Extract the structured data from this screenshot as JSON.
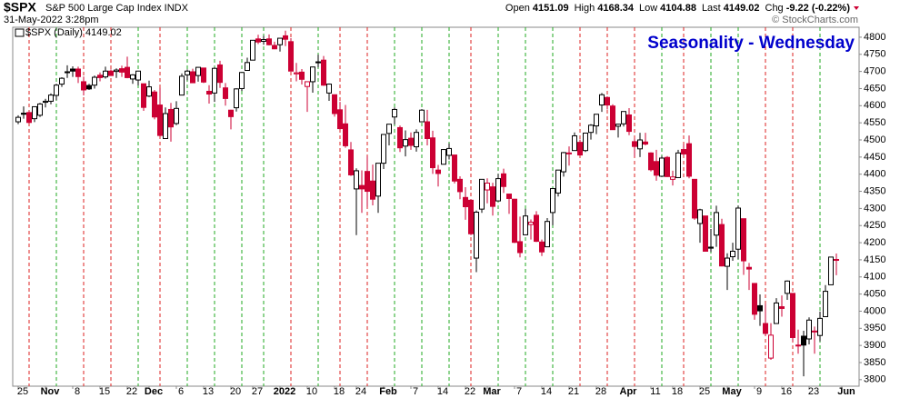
{
  "chart_data": {
    "type": "candlestick",
    "symbol": "$SPX",
    "name": "S&P 500 Large Cap Index INDX",
    "timestamp": "31-May-2022 3:28pm",
    "header": [
      {
        "label": "Open",
        "value": "4151.09"
      },
      {
        "label": "High",
        "value": "4168.34"
      },
      {
        "label": "Low",
        "value": "4104.88"
      },
      {
        "label": "Last",
        "value": "4149.02"
      },
      {
        "label": "Chg",
        "value": "-9.22 (-0.22%)"
      }
    ],
    "copyright": "© StockCharts.com",
    "legend": "$SPX (Daily) 4149.02",
    "title": "Seasonality - Wednesday",
    "categories": [
      "25",
      null,
      null,
      null,
      null,
      "Nov",
      null,
      null,
      null,
      null,
      "8",
      null,
      null,
      null,
      null,
      "15",
      null,
      null,
      null,
      null,
      "22",
      null,
      null,
      null,
      "Dec",
      null,
      null,
      null,
      null,
      "6",
      null,
      null,
      null,
      null,
      "13",
      null,
      null,
      null,
      null,
      "20",
      null,
      null,
      null,
      "27",
      null,
      null,
      null,
      null,
      "2022",
      null,
      null,
      null,
      null,
      "10",
      null,
      null,
      null,
      null,
      "18",
      null,
      null,
      null,
      "24",
      null,
      null,
      null,
      null,
      "Feb",
      null,
      null,
      null,
      null,
      "7",
      null,
      null,
      null,
      null,
      "14",
      null,
      null,
      null,
      null,
      "22",
      null,
      null,
      null,
      "Mar",
      null,
      null,
      null,
      null,
      "7",
      null,
      null,
      null,
      null,
      "14",
      null,
      null,
      null,
      null,
      "21",
      null,
      null,
      null,
      null,
      "28",
      null,
      null,
      null,
      null,
      "Apr",
      null,
      null,
      null,
      null,
      "11",
      null,
      null,
      null,
      "18",
      null,
      null,
      null,
      null,
      "25",
      null,
      null,
      null,
      null,
      "May",
      null,
      null,
      null,
      null,
      "9",
      null,
      null,
      null,
      null,
      "16",
      null,
      null,
      null,
      null,
      "23",
      null,
      null,
      null,
      null,
      null,
      "Jun"
    ],
    "open": [
      4553,
      4578,
      4580,
      4562,
      4572,
      4610,
      4613,
      4630,
      4663,
      4699,
      4707,
      4707,
      4670,
      4659,
      4660,
      4689,
      4684,
      4701,
      4700,
      4708,
      4712,
      4678,
      4675,
      4664,
      4628,
      4640,
      4602,
      4504,
      4589,
      4548,
      4631,
      4690,
      4699,
      4688,
      4710,
      4642,
      4637,
      4719,
      4652,
      4587,
      4594,
      4650,
      4703,
      4733,
      4795,
      4788,
      4795,
      4776,
      4778,
      4804,
      4787,
      4693,
      4698,
      4656,
      4670,
      4728,
      4733,
      4637,
      4632,
      4588,
      4547,
      4471,
      4357,
      4367,
      4408,
      4380,
      4336,
      4432,
      4519,
      4567,
      4536,
      4482,
      4505,
      4480,
      4553,
      4553,
      4506,
      4412,
      4429,
      4455,
      4456,
      4385,
      4332,
      4324,
      4155,
      4298,
      4354,
      4363,
      4322,
      4401,
      4342,
      4327,
      4203,
      4223,
      4253,
      4280,
      4202,
      4188,
      4288,
      4345,
      4407,
      4462,
      4469,
      4493,
      4469,
      4522,
      4541,
      4602,
      4624,
      4599,
      4540,
      4547,
      4573,
      4495,
      4474,
      4494,
      4462,
      4437,
      4394,
      4449,
      4385,
      4390,
      4472,
      4489,
      4385,
      4256,
      4278,
      4187,
      4222,
      4253,
      4131,
      4159,
      4181,
      4270,
      4128,
      4081,
      4016,
      3964,
      3863,
      3964,
      4013,
      4052,
      4052,
      3900,
      3927,
      3919,
      3942,
      3929,
      3984,
      4077,
      4151.09,
      null
    ],
    "high": [
      4572,
      4598,
      4584,
      4598,
      4608,
      4620,
      4636,
      4664,
      4683,
      4718,
      4715,
      4714,
      4685,
      4664,
      4688,
      4697,
      4714,
      4706,
      4709,
      4717,
      4743,
      4692,
      4702,
      4664,
      4673,
      4646,
      4652,
      4595,
      4608,
      4613,
      4694,
      4706,
      4708,
      4713,
      4711,
      4660,
      4712,
      4731,
      4666,
      4588,
      4651,
      4698,
      4740,
      4792,
      4807,
      4804,
      4808,
      4787,
      4797,
      4819,
      4797,
      4725,
      4707,
      4670,
      4714,
      4749,
      4745,
      4665,
      4632,
      4611,
      4602,
      4494,
      4417,
      4411,
      4453,
      4428,
      4432,
      4516,
      4546,
      4595,
      4542,
      4528,
      4522,
      4531,
      4590,
      4588,
      4527,
      4427,
      4473,
      4490,
      4456,
      4394,
      4362,
      4327,
      4294,
      4385,
      4388,
      4375,
      4401,
      4416,
      4342,
      4328,
      4276,
      4299,
      4268,
      4292,
      4209,
      4272,
      4358,
      4412,
      4465,
      4481,
      4522,
      4501,
      4521,
      4546,
      4575,
      4637,
      4627,
      4604,
      4547,
      4583,
      4593,
      4504,
      4521,
      4521,
      4464,
      4471,
      4453,
      4453,
      4410,
      4471,
      4488,
      4513,
      4386,
      4299,
      4278,
      4240,
      4308,
      4270,
      4169,
      4200,
      4308,
      4270,
      4141,
      4081,
      4049,
      4021,
      3965,
      4038,
      4046,
      4090,
      4052,
      3946,
      3943,
      3982,
      3955,
      3999,
      4076,
      4158,
      4168.34,
      null
    ],
    "low": [
      4546,
      4562,
      4549,
      4552,
      4567,
      4595,
      4604,
      4616,
      4655,
      4681,
      4684,
      4666,
      4630,
      4646,
      4650,
      4671,
      4679,
      4688,
      4681,
      4684,
      4680,
      4664,
      4659,
      4585,
      4625,
      4560,
      4510,
      4504,
      4495,
      4543,
      4631,
      4674,
      4666,
      4670,
      4666,
      4606,
      4611,
      4652,
      4600,
      4531,
      4583,
      4643,
      4703,
      4733,
      4780,
      4778,
      4776,
      4765,
      4758,
      4774,
      4700,
      4671,
      4662,
      4582,
      4638,
      4712,
      4658,
      4614,
      4568,
      4531,
      4477,
      4395,
      4222,
      4287,
      4305,
      4309,
      4287,
      4415,
      4484,
      4545,
      4465,
      4452,
      4471,
      4466,
      4553,
      4484,
      4401,
      4364,
      4429,
      4443,
      4373,
      4327,
      4267,
      4222,
      4114,
      4287,
      4315,
      4279,
      4322,
      4345,
      4284,
      4199,
      4157,
      4223,
      4209,
      4202,
      4161,
      4188,
      4251,
      4335,
      4393,
      4425,
      4469,
      4455,
      4465,
      4501,
      4517,
      4582,
      4589,
      4530,
      4507,
      4539,
      4514,
      4450,
      4450,
      4484,
      4408,
      4381,
      4392,
      4392,
      4367,
      4390,
      4453,
      4388,
      4267,
      4200,
      4175,
      4173,
      4188,
      4131,
      4062,
      4147,
      4152,
      4106,
      4062,
      3975,
      3957,
      3928,
      3858,
      3963,
      3984,
      4033,
      3912,
      3876,
      3810,
      3903,
      3876,
      3912,
      3984,
      4077,
      4104.88,
      null
    ],
    "close": [
      4566,
      4575,
      4551,
      4597,
      4605,
      4613,
      4631,
      4660,
      4680,
      4697,
      4701,
      4685,
      4646,
      4649,
      4683,
      4682,
      4701,
      4688,
      4704,
      4698,
      4682,
      4690,
      4701,
      4595,
      4655,
      4567,
      4513,
      4577,
      4538,
      4592,
      4686,
      4701,
      4667,
      4712,
      4669,
      4634,
      4709,
      4668,
      4621,
      4568,
      4649,
      4697,
      4726,
      4791,
      4786,
      4793,
      4778,
      4766,
      4797,
      4794,
      4701,
      4696,
      4677,
      4670,
      4713,
      4726,
      4660,
      4663,
      4577,
      4533,
      4483,
      4398,
      4410,
      4357,
      4350,
      4327,
      4432,
      4516,
      4546,
      4589,
      4477,
      4501,
      4484,
      4522,
      4587,
      4504,
      4419,
      4402,
      4472,
      4475,
      4380,
      4349,
      4305,
      4226,
      4289,
      4385,
      4374,
      4306,
      4387,
      4364,
      4329,
      4201,
      4171,
      4278,
      4260,
      4204,
      4173,
      4262,
      4358,
      4412,
      4463,
      4461,
      4512,
      4456,
      4520,
      4543,
      4575,
      4632,
      4602,
      4530,
      4546,
      4583,
      4525,
      4481,
      4500,
      4488,
      4413,
      4397,
      4447,
      4393,
      4392,
      4462,
      4459,
      4394,
      4272,
      4296,
      4175,
      4184,
      4288,
      4132,
      4155,
      4175,
      4301,
      4147,
      4123,
      3991,
      4001,
      3935,
      3930,
      4024,
      4008,
      4088,
      3923,
      3901,
      3901,
      3974,
      3941,
      3979,
      4058,
      4158,
      4149.02,
      null
    ],
    "up_color": "#000000",
    "down_color": "#cc0033",
    "ylim": [
      3781,
      4829
    ],
    "yticks": [
      3800,
      3850,
      3900,
      3950,
      4000,
      4050,
      4100,
      4150,
      4200,
      4250,
      4300,
      4350,
      4400,
      4450,
      4500,
      4550,
      4600,
      4650,
      4700,
      4750,
      4800
    ]
  }
}
